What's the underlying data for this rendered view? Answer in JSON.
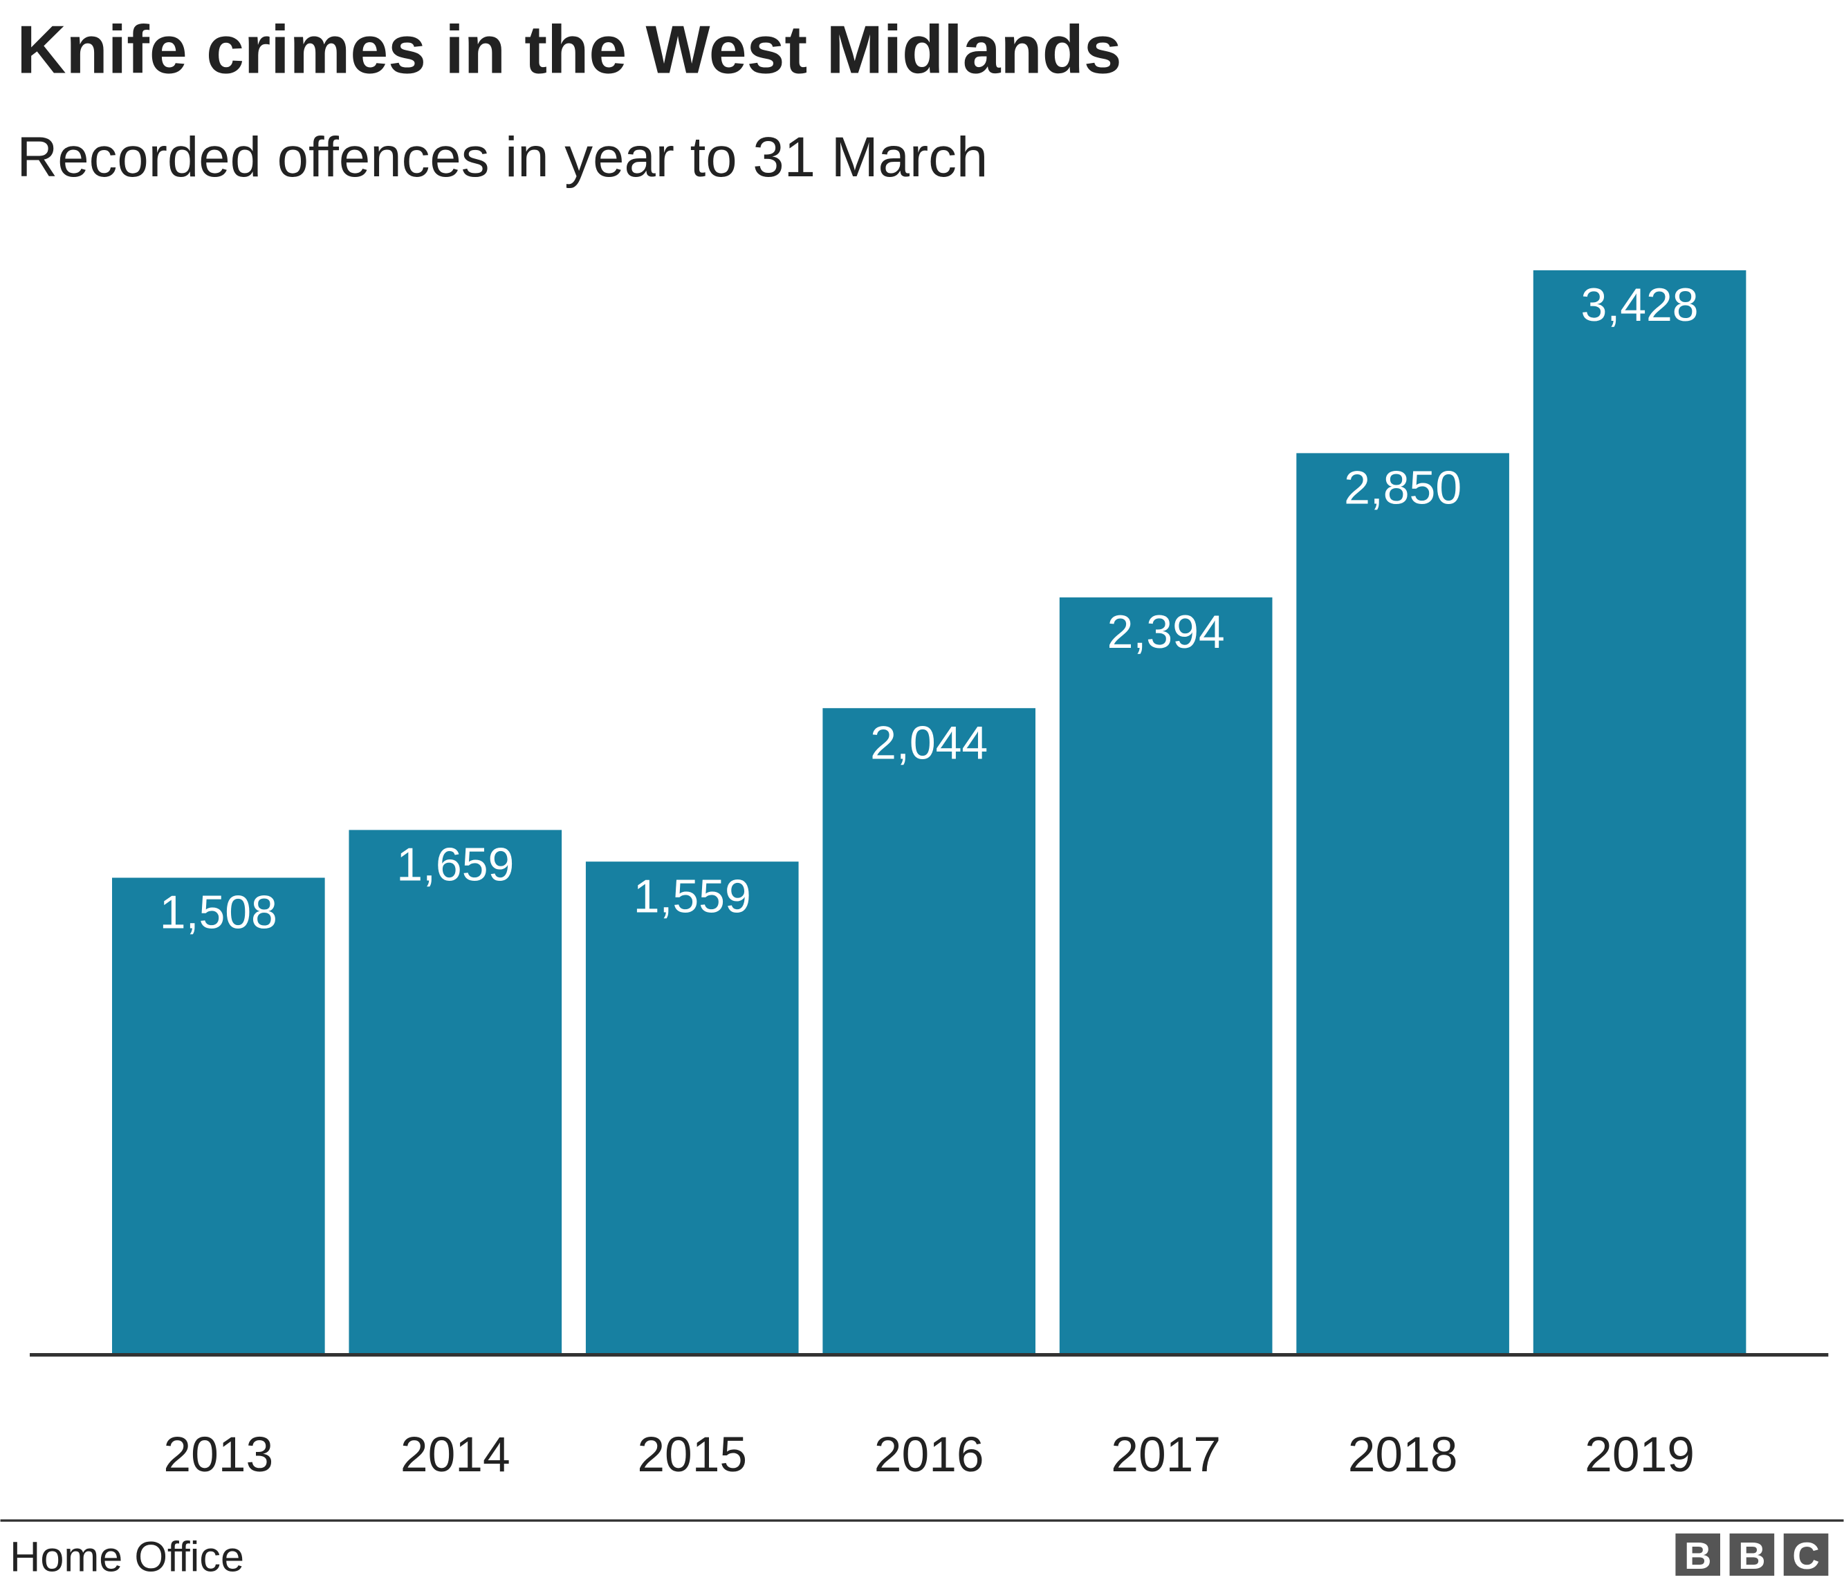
{
  "chart_data": {
    "type": "bar",
    "title": "Knife crimes in the West Midlands",
    "subtitle": "Recorded offences in year to 31 March",
    "categories": [
      "2013",
      "2014",
      "2015",
      "2016",
      "2017",
      "2018",
      "2019"
    ],
    "values": [
      1508,
      1659,
      1559,
      2044,
      2394,
      2850,
      3428
    ],
    "value_labels": [
      "1,508",
      "1,659",
      "1,559",
      "2,044",
      "2,394",
      "2,850",
      "3,428"
    ],
    "color": "#1780a1",
    "source": "Home Office",
    "logo": [
      "B",
      "B",
      "C"
    ]
  }
}
